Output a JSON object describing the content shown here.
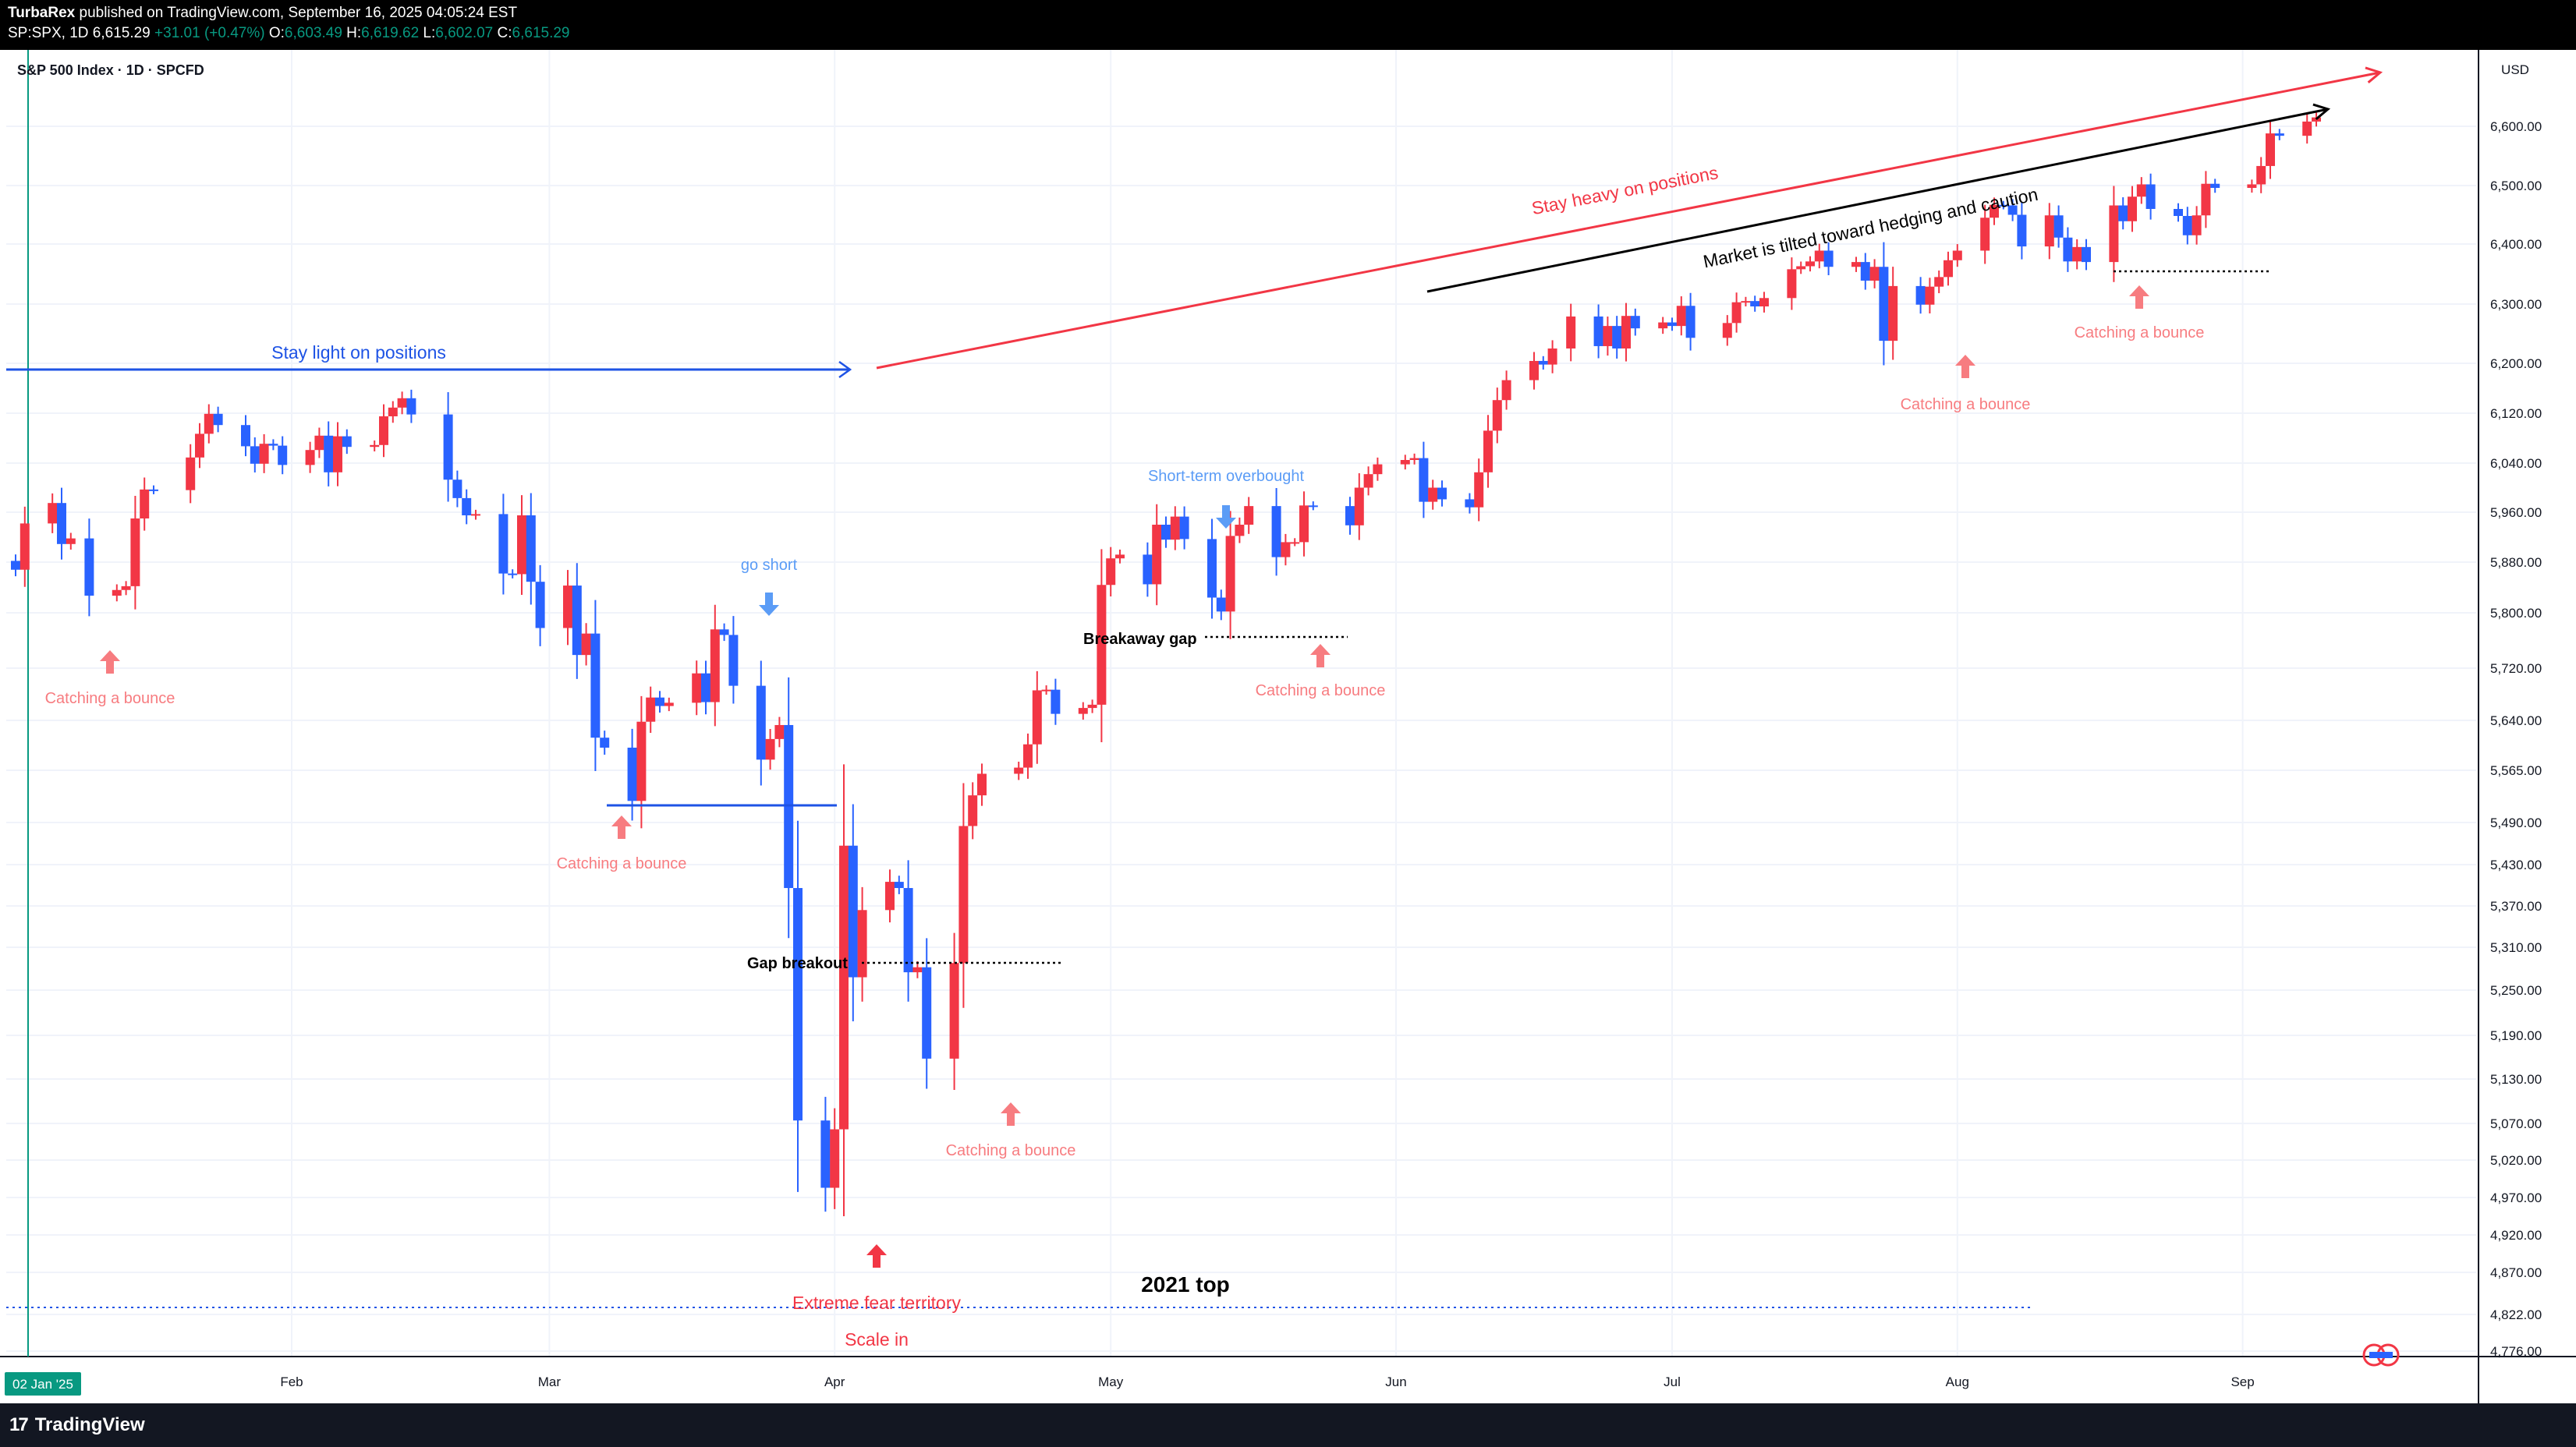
{
  "header": {
    "publisher": "TurbaRex",
    "published_line": " published on TradingView.com, September 16, 2025 04:05:24 EST",
    "symbol_line": "SP:SPX, 1D",
    "last": "6,615.29",
    "change": "+31.01 (+0.47%)",
    "open_label": "O:",
    "open": "6,603.49",
    "high_label": "H:",
    "high": "6,619.62",
    "low_label": "L:",
    "low": "6,602.07",
    "close_label": "C:",
    "close": "6,615.29"
  },
  "chart_title": "S&P 500 Index · 1D · SPCFD",
  "footer": {
    "brand": "TradingView"
  },
  "colors": {
    "up": "#f23645",
    "down": "#2962ff",
    "blue_annot": "#1e53e5",
    "red_annot": "#f23645",
    "pink_annot": "#f77c80",
    "lightblue_annot": "#5b9cf6",
    "grid": "#f0f3fa"
  },
  "chart_data": {
    "type": "candlestick",
    "title": "S&P 500 Index · 1D · SPCFD",
    "currency": "USD",
    "y_ticks": [
      6600,
      6500,
      6400,
      6300,
      6200,
      6120,
      6040,
      5960,
      5880,
      5800,
      5720,
      5640,
      5565,
      5490,
      5430,
      5370,
      5310,
      5250,
      5190,
      5130,
      5070,
      5020,
      4970,
      4920,
      4870,
      4822,
      4776
    ],
    "y_tick_labels": [
      "6,600.00",
      "6,500.00",
      "6,400.00",
      "6,300.00",
      "6,200.00",
      "6,120.00",
      "6,040.00",
      "5,960.00",
      "5,880.00",
      "5,800.00",
      "5,720.00",
      "5,640.00",
      "5,565.00",
      "5,490.00",
      "5,430.00",
      "5,370.00",
      "5,310.00",
      "5,250.00",
      "5,190.00",
      "5,130.00",
      "5,070.00",
      "5,020.00",
      "4,970.00",
      "4,920.00",
      "4,870.00",
      "4,822.00",
      "4,776.00"
    ],
    "x_labels": [
      {
        "date": "2025-02-01",
        "label": "Feb"
      },
      {
        "date": "2025-03-01",
        "label": "Mar"
      },
      {
        "date": "2025-04-01",
        "label": "Apr"
      },
      {
        "date": "2025-05-01",
        "label": "May"
      },
      {
        "date": "2025-06-01",
        "label": "Jun"
      },
      {
        "date": "2025-07-01",
        "label": "Jul"
      },
      {
        "date": "2025-08-01",
        "label": "Aug"
      },
      {
        "date": "2025-09-01",
        "label": "Sep"
      }
    ],
    "start_badge": "02 Jan '25",
    "closes": [
      5868,
      5942,
      5975,
      5909,
      5918,
      5827,
      5836,
      5842,
      5950,
      5997,
      5996,
      6049,
      6087,
      6119,
      6101,
      6067,
      6039,
      6071,
      6068,
      6037,
      6061,
      6084,
      6025,
      6083,
      6066,
      6069,
      6115,
      6129,
      6144,
      6118,
      6013,
      5983,
      5955,
      5957,
      5862,
      5861,
      5955,
      5849,
      5778,
      5843,
      5739,
      5770,
      5614,
      5599,
      5521,
      5638,
      5675,
      5662,
      5667,
      5712,
      5668,
      5776,
      5768,
      5693,
      5581,
      5612,
      5633,
      5396,
      5074,
      4983,
      5062,
      5457,
      5268,
      5364,
      5405,
      5396,
      5275,
      5282,
      5158,
      5288,
      5485,
      5529,
      5560,
      5569,
      5604,
      5686,
      5687,
      5650,
      5659,
      5664,
      5844,
      5886,
      5892,
      5845,
      5940,
      5916,
      5953,
      5917,
      5824,
      5802,
      5922,
      5940,
      5970,
      5888,
      5912,
      5912,
      5971,
      5970,
      5939,
      6000,
      6022,
      6038,
      6045,
      6048,
      5977,
      6000,
      5981,
      5968,
      6025,
      6092,
      6141,
      6173,
      6204,
      6198,
      6225,
      6279,
      6229,
      6263,
      6225,
      6280,
      6259,
      6269,
      6263,
      6297,
      6243,
      6268,
      6303,
      6305,
      6296,
      6310,
      6358,
      6363,
      6371,
      6389,
      6362,
      6370,
      6339,
      6362,
      6238,
      6330,
      6299,
      6329,
      6345,
      6373,
      6389,
      6445,
      6467,
      6466,
      6450,
      6396,
      6449,
      6411,
      6371,
      6395,
      6370,
      6466,
      6439,
      6481,
      6502,
      6460,
      6448,
      6415,
      6449,
      6503,
      6496,
      6502,
      6533,
      6588,
      6584,
      6608,
      6615
    ],
    "annotations": [
      {
        "type": "text",
        "text": "Stay light on positions",
        "color": "blue_annot"
      },
      {
        "type": "text",
        "text": "Stay heavy on positions",
        "color": "red_annot"
      },
      {
        "type": "text",
        "text": "Market is tilted toward hedging and caution",
        "color": "black"
      },
      {
        "type": "text",
        "text": "go short",
        "color": "lightblue_annot"
      },
      {
        "type": "text",
        "text": "Short-term overbought",
        "color": "lightblue_annot"
      },
      {
        "type": "text",
        "text": "Breakaway gap",
        "color": "black"
      },
      {
        "type": "text",
        "text": "Gap breakout",
        "color": "black"
      },
      {
        "type": "text",
        "text": "2021 top",
        "color": "black"
      },
      {
        "type": "text",
        "text": "Extreme fear territory",
        "color": "red_annot"
      },
      {
        "type": "text",
        "text": "Scale in",
        "color": "red_annot"
      },
      {
        "type": "text",
        "text": "Catching a bounce",
        "color": "pink_annot"
      }
    ]
  }
}
